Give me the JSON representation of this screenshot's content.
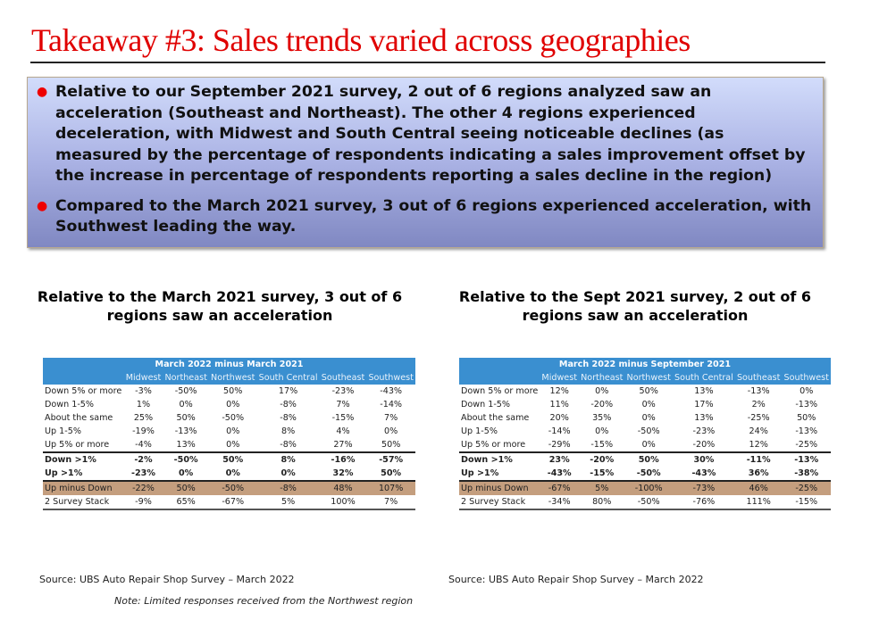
{
  "title": "Takeaway #3: Sales trends varied across geographies",
  "bullets": [
    "Relative to our September 2021 survey, 2 out of 6 regions analyzed saw an acceleration (Southeast and Northeast). The other 4 regions experienced deceleration, with Midwest and South Central seeing noticeable declines (as measured by the percentage of respondents indicating a sales improvement offset by the increase in percentage of respondents reporting a sales decline in the region)",
    "Compared to the March 2021 survey, 3 out of 6 regions experienced acceleration, with Southwest leading the way."
  ],
  "left": {
    "subtitle": "Relative to the March 2021 survey, 3 out of 6 regions saw an acceleration",
    "table_title": "March 2022 minus March 2021",
    "columns": [
      "Midwest",
      "Northeast",
      "Northwest",
      "South Central",
      "Southeast",
      "Southwest"
    ],
    "rows": [
      {
        "label": "Down 5% or more",
        "values": [
          "-3%",
          "-50%",
          "50%",
          "17%",
          "-23%",
          "-43%"
        ]
      },
      {
        "label": "Down 1-5%",
        "values": [
          "1%",
          "0%",
          "0%",
          "-8%",
          "7%",
          "-14%"
        ]
      },
      {
        "label": "About the same",
        "values": [
          "25%",
          "50%",
          "-50%",
          "-8%",
          "-15%",
          "7%"
        ]
      },
      {
        "label": "Up 1-5%",
        "values": [
          "-19%",
          "-13%",
          "0%",
          "8%",
          "4%",
          "0%"
        ]
      },
      {
        "label": "Up 5% or more",
        "values": [
          "-4%",
          "13%",
          "0%",
          "-8%",
          "27%",
          "50%"
        ]
      },
      {
        "label": "Down >1%",
        "values": [
          "-2%",
          "-50%",
          "50%",
          "8%",
          "-16%",
          "-57%"
        ]
      },
      {
        "label": "Up >1%",
        "values": [
          "-23%",
          "0%",
          "0%",
          "0%",
          "32%",
          "50%"
        ]
      },
      {
        "label": "Up minus Down",
        "values": [
          "-22%",
          "50%",
          "-50%",
          "-8%",
          "48%",
          "107%"
        ]
      },
      {
        "label": "2 Survey Stack",
        "values": [
          "-9%",
          "65%",
          "-67%",
          "5%",
          "100%",
          "7%"
        ]
      }
    ],
    "source": "Source: UBS Auto Repair Shop Survey – March 2022",
    "note": "Note: Limited responses received from the Northwest region"
  },
  "right": {
    "subtitle": "Relative to the Sept 2021 survey, 2 out of 6 regions saw an acceleration",
    "table_title": "March 2022 minus September 2021",
    "columns": [
      "Midwest",
      "Northeast",
      "Northwest",
      "South Central",
      "Southeast",
      "Southwest"
    ],
    "rows": [
      {
        "label": "Down 5% or more",
        "values": [
          "12%",
          "0%",
          "50%",
          "13%",
          "-13%",
          "0%"
        ]
      },
      {
        "label": "Down 1-5%",
        "values": [
          "11%",
          "-20%",
          "0%",
          "17%",
          "2%",
          "-13%"
        ]
      },
      {
        "label": "About the same",
        "values": [
          "20%",
          "35%",
          "0%",
          "13%",
          "-25%",
          "50%"
        ]
      },
      {
        "label": "Up 1-5%",
        "values": [
          "-14%",
          "0%",
          "-50%",
          "-23%",
          "24%",
          "-13%"
        ]
      },
      {
        "label": "Up 5% or more",
        "values": [
          "-29%",
          "-15%",
          "0%",
          "-20%",
          "12%",
          "-25%"
        ]
      },
      {
        "label": "Down >1%",
        "values": [
          "23%",
          "-20%",
          "50%",
          "30%",
          "-11%",
          "-13%"
        ]
      },
      {
        "label": "Up >1%",
        "values": [
          "-43%",
          "-15%",
          "-50%",
          "-43%",
          "36%",
          "-38%"
        ]
      },
      {
        "label": "Up minus Down",
        "values": [
          "-67%",
          "5%",
          "-100%",
          "-73%",
          "46%",
          "-25%"
        ]
      },
      {
        "label": "2 Survey Stack",
        "values": [
          "-34%",
          "80%",
          "-50%",
          "-76%",
          "111%",
          "-15%"
        ]
      }
    ],
    "source": "Source: UBS Auto Repair Shop Survey – March 2022"
  }
}
